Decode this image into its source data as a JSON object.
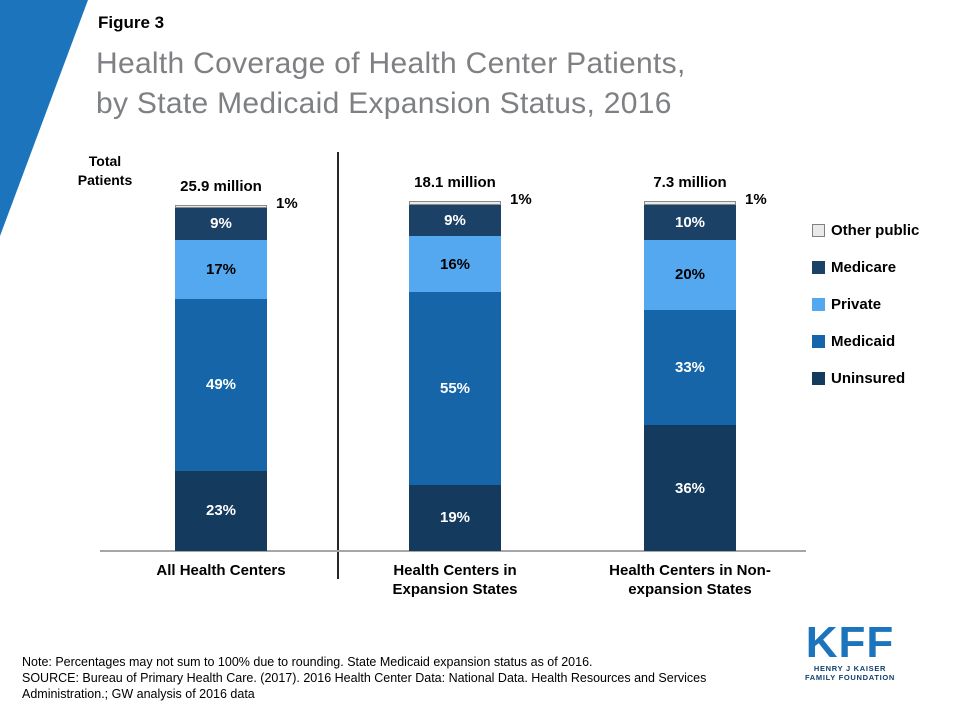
{
  "figure_label": "Figure 3",
  "title": {
    "line1": "Health Coverage of Health Center Patients,",
    "line2": "by State Medicaid Expansion Status, 2016"
  },
  "total_patients_label": "Total Patients",
  "chart_data": {
    "type": "bar",
    "stacked": true,
    "unit": "%",
    "ylim": [
      0,
      100
    ],
    "grid": false,
    "legend_position": "right",
    "title": "Health Coverage of Health Center Patients, by State Medicaid Expansion Status, 2016",
    "categories": [
      "All Health Centers",
      "Health Centers in Expansion States",
      "Health Centers in Non-expansion States"
    ],
    "category_lines": [
      [
        "All Health Centers"
      ],
      [
        "Health Centers in",
        "Expansion States"
      ],
      [
        "Health Centers in Non-",
        "expansion States"
      ]
    ],
    "totals": [
      "25.9 million",
      "18.1 million",
      "7.3 million"
    ],
    "series": [
      {
        "name": "Uninsured",
        "color": "#143a5e",
        "values": [
          23,
          19,
          36
        ],
        "label_color": "#ffffff"
      },
      {
        "name": "Medicaid",
        "color": "#1565a8",
        "values": [
          49,
          55,
          33
        ],
        "label_color": "#ffffff"
      },
      {
        "name": "Private",
        "color": "#54a8f0",
        "values": [
          17,
          16,
          20
        ],
        "label_color": "#000000"
      },
      {
        "name": "Medicare",
        "color": "#1c4166",
        "values": [
          9,
          9,
          10
        ],
        "label_color": "#ffffff"
      },
      {
        "name": "Other public",
        "color": "#e9e9ea",
        "values": [
          1,
          1,
          1
        ],
        "label_color": "#000000",
        "label_outside": true,
        "swatch_border": "#808080"
      }
    ],
    "legend_order": [
      "Other public",
      "Medicare",
      "Private",
      "Medicaid",
      "Uninsured"
    ]
  },
  "notes": {
    "line1": "Note: Percentages may not sum to 100% due to rounding. State Medicaid expansion status as of 2016.",
    "line2": "SOURCE: Bureau of Primary Health Care. (2017). 2016 Health Center Data: National Data. Health Resources and Services Administration.; GW analysis of 2016 data"
  },
  "logo": {
    "text": "KFF",
    "sub1": "HENRY J KAISER",
    "sub2": "FAMILY FOUNDATION"
  }
}
